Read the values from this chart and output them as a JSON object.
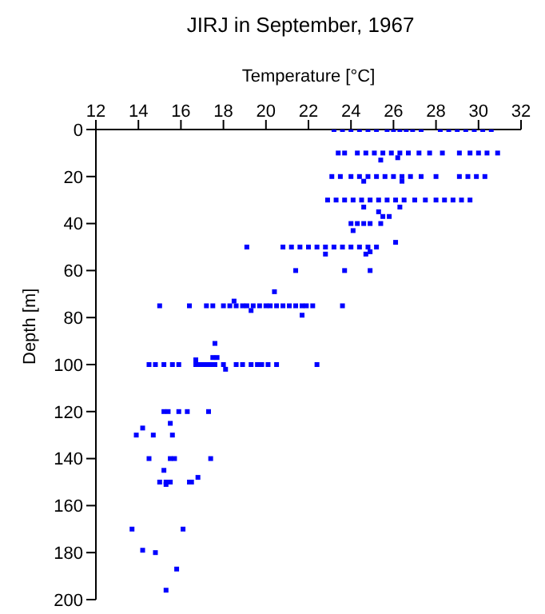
{
  "chart_data": {
    "type": "scatter",
    "title": "JIRJ in September, 1967",
    "xlabel": "Temperature [°C]",
    "ylabel": "Depth [m]",
    "color": "#0000ff",
    "marker": "square",
    "xlim": [
      12,
      32
    ],
    "xticks": [
      12,
      14,
      16,
      18,
      20,
      22,
      24,
      26,
      28,
      30,
      32
    ],
    "ylim": [
      200,
      0
    ],
    "yticks": [
      0,
      20,
      40,
      60,
      80,
      100,
      120,
      140,
      160,
      180,
      200
    ],
    "x": [
      23.2,
      23.6,
      24.0,
      24.4,
      24.8,
      25.2,
      25.7,
      26.0,
      26.3,
      26.6,
      26.9,
      27.3,
      28.2,
      28.6,
      29.0,
      29.4,
      29.8,
      30.2,
      30.6,
      23.4,
      23.7,
      24.3,
      24.7,
      25.1,
      25.5,
      25.9,
      26.3,
      26.7,
      27.2,
      27.7,
      28.3,
      29.1,
      29.6,
      30.0,
      30.4,
      30.9,
      25.4,
      26.2,
      23.1,
      23.5,
      24.0,
      24.4,
      24.8,
      25.2,
      25.6,
      26.0,
      26.4,
      26.8,
      27.3,
      28.0,
      29.1,
      29.5,
      29.9,
      30.3,
      24.6,
      26.4,
      22.9,
      23.3,
      23.7,
      24.1,
      24.5,
      24.9,
      25.3,
      25.7,
      26.1,
      26.5,
      27.0,
      27.5,
      28.0,
      28.4,
      28.8,
      29.2,
      29.6,
      24.6,
      26.3,
      25.3,
      25.5,
      25.8,
      24.0,
      24.3,
      24.6,
      24.9,
      25.4,
      24.1,
      26.1,
      19.1,
      20.8,
      21.2,
      21.6,
      22.0,
      22.4,
      22.8,
      23.2,
      23.6,
      24.0,
      24.4,
      24.8,
      25.2,
      22.8,
      24.7,
      24.9,
      21.4,
      23.7,
      24.9,
      20.4,
      15.0,
      16.4,
      17.2,
      17.5,
      18.0,
      18.3,
      18.6,
      18.9,
      19.1,
      19.4,
      19.7,
      20.0,
      20.2,
      20.5,
      20.8,
      21.1,
      21.4,
      21.7,
      21.9,
      22.2,
      23.6,
      18.5,
      19.3,
      21.7,
      17.6,
      17.5,
      17.7,
      14.5,
      14.8,
      15.2,
      15.6,
      15.9,
      16.7,
      16.8,
      17.0,
      17.2,
      17.4,
      17.6,
      18.0,
      18.6,
      18.9,
      19.3,
      19.6,
      19.8,
      20.1,
      20.5,
      22.4,
      18.1,
      16.7,
      15.2,
      15.4,
      15.9,
      16.3,
      17.3,
      15.5,
      14.2,
      13.9,
      14.7,
      15.6,
      14.5,
      15.5,
      15.7,
      17.4,
      15.2,
      16.8,
      15.0,
      15.3,
      15.5,
      16.4,
      16.5,
      15.3,
      13.7,
      16.1,
      14.2,
      14.8,
      15.8,
      15.3
    ],
    "values": [
      0,
      0,
      0,
      0,
      0,
      0,
      0,
      0,
      0,
      0,
      0,
      0,
      0,
      0,
      0,
      0,
      0,
      0,
      0,
      10,
      10,
      10,
      10,
      10,
      10,
      10,
      10,
      10,
      10,
      10,
      10,
      10,
      10,
      10,
      10,
      10,
      13,
      12,
      20,
      20,
      20,
      20,
      20,
      20,
      20,
      20,
      20,
      20,
      20,
      20,
      20,
      20,
      20,
      20,
      22,
      22,
      30,
      30,
      30,
      30,
      30,
      30,
      30,
      30,
      30,
      30,
      30,
      30,
      30,
      30,
      30,
      30,
      30,
      33,
      33,
      35,
      37,
      37,
      40,
      40,
      40,
      40,
      40,
      43,
      48,
      50,
      50,
      50,
      50,
      50,
      50,
      50,
      50,
      50,
      50,
      50,
      50,
      50,
      53,
      53,
      52,
      60,
      60,
      60,
      69,
      75,
      75,
      75,
      75,
      75,
      75,
      75,
      75,
      75,
      75,
      75,
      75,
      75,
      75,
      75,
      75,
      75,
      75,
      75,
      75,
      75,
      73,
      77,
      79,
      91,
      97,
      97,
      100,
      100,
      100,
      100,
      100,
      100,
      100,
      100,
      100,
      100,
      100,
      100,
      100,
      100,
      100,
      100,
      100,
      100,
      100,
      100,
      102,
      98,
      120,
      120,
      120,
      120,
      120,
      125,
      127,
      130,
      130,
      130,
      140,
      140,
      140,
      140,
      145,
      148,
      150,
      150,
      150,
      150,
      150,
      151,
      170,
      170,
      179,
      180,
      187,
      196
    ]
  }
}
